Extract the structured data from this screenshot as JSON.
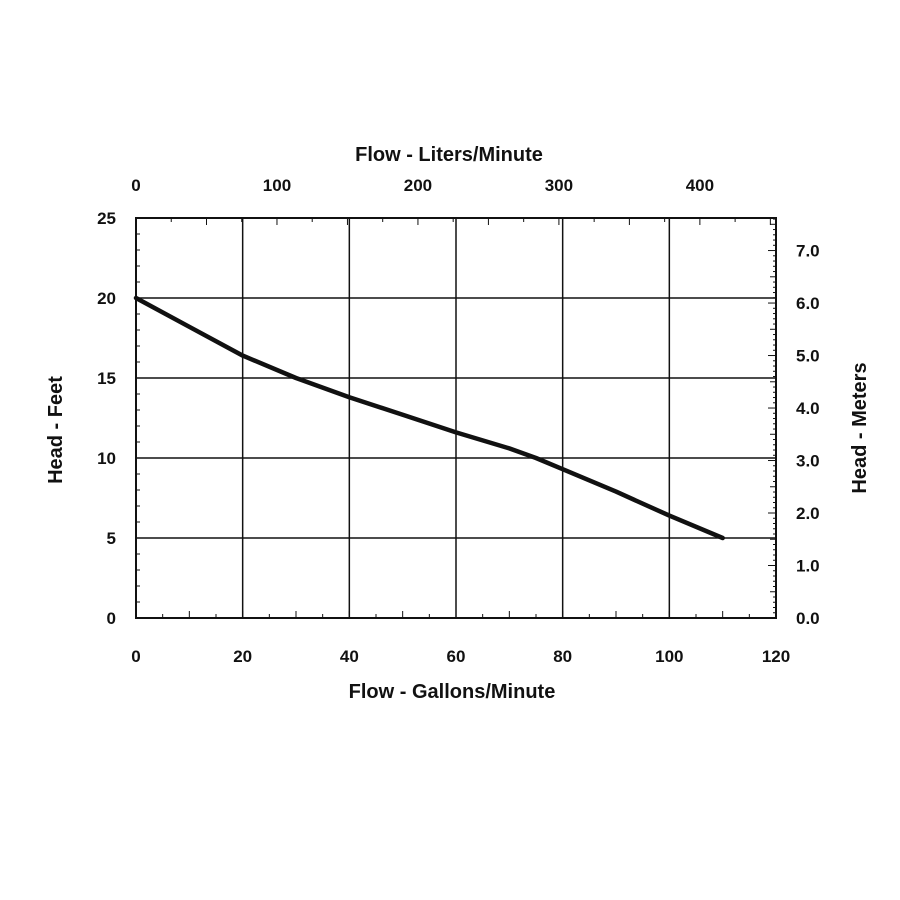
{
  "chart_data": {
    "type": "line",
    "title": "",
    "xlabel": "Flow - Gallons/Minute",
    "ylabel": "Head - Feet",
    "secondary_xlabel": "Flow - Liters/Minute",
    "secondary_ylabel": "Head - Meters",
    "xlim": [
      0,
      120
    ],
    "ylim": [
      0,
      25
    ],
    "secondary_xlim": [
      0,
      454
    ],
    "secondary_ylim": [
      0,
      7.62
    ],
    "x_ticks": [
      "0",
      "20",
      "40",
      "60",
      "80",
      "100",
      "120"
    ],
    "y_ticks": [
      "0",
      "5",
      "10",
      "15",
      "20",
      "25"
    ],
    "secondary_x_ticks": [
      "0",
      "100",
      "200",
      "300",
      "400"
    ],
    "secondary_y_ticks": [
      "0.0",
      "1.0",
      "2.0",
      "3.0",
      "4.0",
      "5.0",
      "6.0",
      "7.0"
    ],
    "grid": true,
    "line_color": "#111111",
    "series": [
      {
        "x": [
          0,
          10,
          20,
          30,
          40,
          50,
          60,
          70,
          75,
          80,
          90,
          100,
          110
        ],
        "y": [
          20,
          18.2,
          16.4,
          15,
          13.8,
          12.7,
          11.6,
          10.6,
          10,
          9.3,
          7.9,
          6.4,
          5
        ]
      }
    ]
  }
}
